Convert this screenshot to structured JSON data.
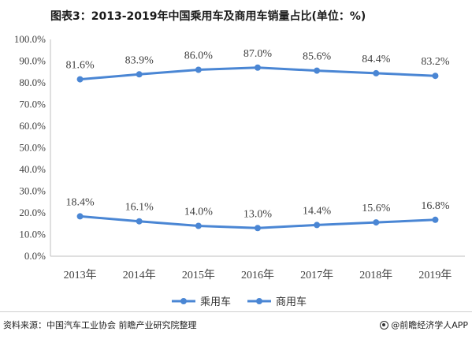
{
  "title": "图表3：2013-2019年中国乘用车及商用车销量占比(单位：%)",
  "source": "资料来源：中国汽车工业协会 前瞻产业研究院整理",
  "brand": "@前瞻经济学人APP",
  "colors": {
    "line": "#4a86d4",
    "grid": "#d9d9d9",
    "axis": "#bfbfbf",
    "text": "#404040"
  },
  "chart_data": {
    "type": "line",
    "title": "图表3：2013-2019年中国乘用车及商用车销量占比(单位：%)",
    "categories": [
      "2013年",
      "2014年",
      "2015年",
      "2016年",
      "2017年",
      "2018年",
      "2019年"
    ],
    "series": [
      {
        "name": "乘用车",
        "values": [
          81.6,
          83.9,
          86.0,
          87.0,
          85.6,
          84.4,
          83.2
        ],
        "labels": [
          "81.6%",
          "83.9%",
          "86.0%",
          "87.0%",
          "85.6%",
          "84.4%",
          "83.2%"
        ]
      },
      {
        "name": "商用车",
        "values": [
          18.4,
          16.1,
          14.0,
          13.0,
          14.4,
          15.6,
          16.8
        ],
        "labels": [
          "18.4%",
          "16.1%",
          "14.0%",
          "13.0%",
          "14.4%",
          "15.6%",
          "16.8%"
        ]
      }
    ],
    "yticks": [
      "0.0%",
      "10.0%",
      "20.0%",
      "30.0%",
      "40.0%",
      "50.0%",
      "60.0%",
      "70.0%",
      "80.0%",
      "90.0%",
      "100.0%"
    ],
    "ylim": [
      0,
      100
    ],
    "grid": false,
    "legend": "bottom"
  }
}
